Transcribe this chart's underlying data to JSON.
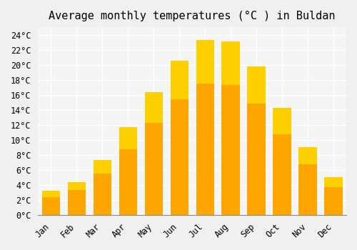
{
  "title": "Average monthly temperatures (°C ) in Buldan",
  "months": [
    "Jan",
    "Feb",
    "Mar",
    "Apr",
    "May",
    "Jun",
    "Jul",
    "Aug",
    "Sep",
    "Oct",
    "Nov",
    "Dec"
  ],
  "values": [
    3.2,
    4.4,
    7.3,
    11.7,
    16.4,
    20.5,
    23.3,
    23.1,
    19.8,
    14.3,
    9.0,
    5.0
  ],
  "bar_color_main": "#FFA500",
  "bar_color_gradient_top": "#FFD000",
  "ylim": [
    0,
    25
  ],
  "yticks": [
    0,
    2,
    4,
    6,
    8,
    10,
    12,
    14,
    16,
    18,
    20,
    22,
    24
  ],
  "ytick_labels": [
    "0°C",
    "2°C",
    "4°C",
    "6°C",
    "8°C",
    "10°C",
    "12°C",
    "14°C",
    "16°C",
    "18°C",
    "20°C",
    "22°C",
    "24°C"
  ],
  "background_color": "#f0f0f0",
  "plot_background_color": "#f5f5f5",
  "grid_color": "#ffffff",
  "title_fontsize": 11,
  "tick_fontsize": 8.5,
  "font_family": "monospace"
}
